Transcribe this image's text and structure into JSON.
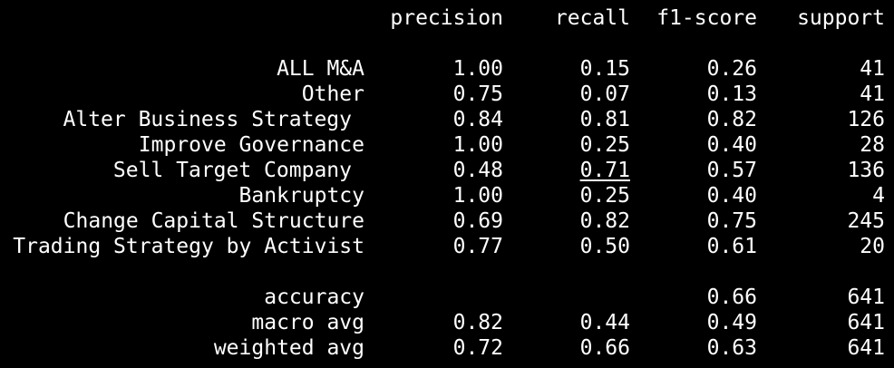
{
  "report": {
    "columns": [
      "precision",
      "recall",
      "f1-score",
      "support"
    ],
    "rows": [
      {
        "label": "ALL M&A",
        "precision": "1.00",
        "recall": "0.15",
        "f1": "0.26",
        "support": "41"
      },
      {
        "label": "Other",
        "precision": "0.75",
        "recall": "0.07",
        "f1": "0.13",
        "support": "41"
      },
      {
        "label": "Alter Business Strategy",
        "precision": "0.84",
        "recall": "0.81",
        "f1": "0.82",
        "support": "126"
      },
      {
        "label": "Improve Governance",
        "precision": "1.00",
        "recall": "0.25",
        "f1": "0.40",
        "support": "28"
      },
      {
        "label": "Sell Target Company",
        "precision": "0.48",
        "recall": "0.71",
        "f1": "0.57",
        "support": "136"
      },
      {
        "label": "Bankruptcy",
        "precision": "1.00",
        "recall": "0.25",
        "f1": "0.40",
        "support": "4"
      },
      {
        "label": "Change Capital Structure",
        "precision": "0.69",
        "recall": "0.82",
        "f1": "0.75",
        "support": "245"
      },
      {
        "label": "Trading Strategy by Activist",
        "precision": "0.77",
        "recall": "0.50",
        "f1": "0.61",
        "support": "20"
      }
    ],
    "summary": [
      {
        "label": "accuracy",
        "precision": "",
        "recall": "",
        "f1": "0.66",
        "support": "641"
      },
      {
        "label": "macro avg",
        "precision": "0.82",
        "recall": "0.44",
        "f1": "0.49",
        "support": "641"
      },
      {
        "label": "weighted avg",
        "precision": "0.72",
        "recall": "0.66",
        "f1": "0.63",
        "support": "641"
      }
    ]
  },
  "colors": {
    "background": "#000000",
    "text": "#ffffff"
  }
}
